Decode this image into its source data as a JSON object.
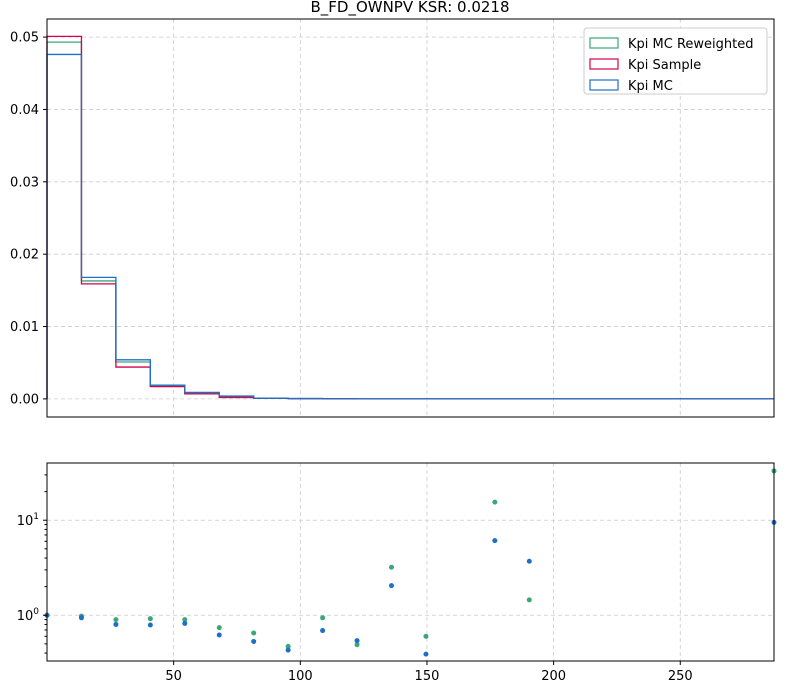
{
  "chart_data": [
    {
      "type": "line",
      "title": "B_FD_OWNPV   KSR: 0.0218",
      "xlim": [
        0,
        287
      ],
      "ylim": [
        -0.0025,
        0.0525
      ],
      "yticks": [
        "0.00",
        "0.01",
        "0.02",
        "0.03",
        "0.04",
        "0.05"
      ],
      "ytick_values": [
        0,
        0.01,
        0.02,
        0.03,
        0.04,
        0.05
      ],
      "grid": true,
      "legend_position": "top-right",
      "bin_edges": [
        0,
        13.6,
        27.2,
        40.8,
        54.4,
        68.0,
        81.6,
        95.2,
        108.8,
        122.4,
        136.0,
        149.6,
        163.2,
        176.8,
        190.4,
        204.0,
        217.6,
        231.2,
        244.8,
        258.4,
        272.0,
        287.0
      ],
      "series": [
        {
          "name": "Kpi MC Reweighted",
          "color": "#3aa876",
          "values": [
            0.0493,
            0.0163,
            0.0051,
            0.0018,
            0.0008,
            0.0003,
            0.0001,
            5e-05,
            2e-05,
            0,
            0,
            0,
            0,
            0,
            0,
            0,
            0,
            0,
            0,
            0,
            0
          ]
        },
        {
          "name": "Kpi Sample",
          "color": "#d6004c",
          "values": [
            0.0501,
            0.0159,
            0.0044,
            0.0017,
            0.0007,
            0.0002,
            0.0001,
            4e-05,
            2e-05,
            0,
            0,
            0,
            0,
            0,
            0,
            0,
            0,
            0,
            0,
            0,
            0
          ]
        },
        {
          "name": "Kpi MC",
          "color": "#1f6fc6",
          "values": [
            0.0476,
            0.0168,
            0.0054,
            0.0019,
            0.0009,
            0.0004,
            0.0001,
            5e-05,
            2e-05,
            0,
            0,
            0,
            0,
            0,
            0,
            0,
            0,
            0,
            0,
            0,
            0
          ]
        }
      ]
    },
    {
      "type": "scatter",
      "yscale": "log",
      "xlim": [
        0,
        287
      ],
      "ylim": [
        0.33,
        40
      ],
      "xticks": [
        "50",
        "100",
        "150",
        "200",
        "250"
      ],
      "xtick_values": [
        50,
        100,
        150,
        200,
        250
      ],
      "ytick_values": [
        1,
        10
      ],
      "grid": true,
      "series": [
        {
          "name": "Kpi MC Reweighted",
          "color": "#3aa876",
          "x": [
            0,
            13.6,
            27.2,
            40.8,
            54.4,
            68.0,
            81.6,
            95.2,
            108.8,
            122.4,
            136.0,
            149.6,
            176.8,
            190.4,
            287.0
          ],
          "y": [
            1.0,
            0.98,
            0.9,
            0.92,
            0.9,
            0.74,
            0.65,
            0.47,
            0.94,
            0.49,
            3.2,
            0.6,
            15.5,
            1.45,
            33
          ]
        },
        {
          "name": "Kpi MC",
          "color": "#1f6fc6",
          "x": [
            0,
            13.6,
            27.2,
            40.8,
            54.4,
            68.0,
            81.6,
            95.2,
            108.8,
            122.4,
            136.0,
            149.6,
            176.8,
            190.4,
            287.0
          ],
          "y": [
            1.0,
            0.94,
            0.8,
            0.79,
            0.82,
            0.62,
            0.53,
            0.43,
            0.69,
            0.54,
            2.05,
            0.39,
            6.1,
            3.7,
            9.5
          ]
        }
      ]
    }
  ]
}
